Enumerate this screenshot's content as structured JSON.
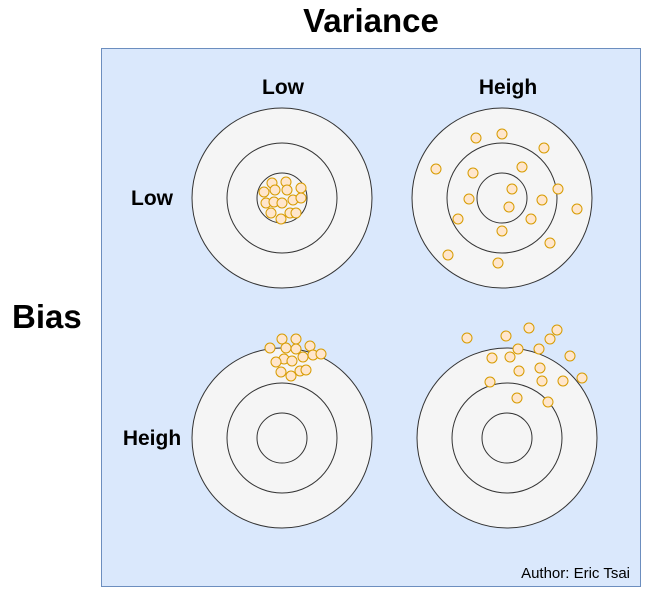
{
  "title": "Variance",
  "side_label": "Bias",
  "columns": [
    "Low",
    "Heigh"
  ],
  "rows": [
    "Low",
    "Heigh"
  ],
  "author": "Author: Eric Tsai",
  "colors": {
    "panel_fill": "#dae8fc",
    "panel_border": "#6c8ebf",
    "target_fill": "#f5f5f5",
    "ring_stroke": "#333333",
    "dot_fill": "#ffe6cc",
    "dot_stroke": "#d79b00"
  },
  "targets": [
    {
      "bias": "Low",
      "variance": "Low"
    },
    {
      "bias": "Low",
      "variance": "Heigh"
    },
    {
      "bias": "Heigh",
      "variance": "Low"
    },
    {
      "bias": "Heigh",
      "variance": "Heigh"
    }
  ]
}
